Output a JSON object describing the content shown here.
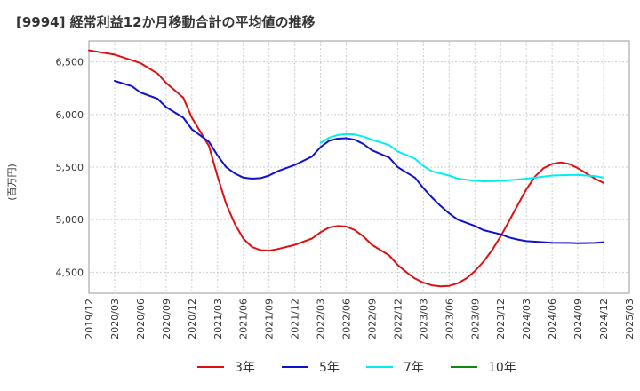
{
  "chart_data": {
    "type": "line",
    "title": "[9994]  経常利益12か月移動合計の平均値の推移",
    "ylabel": "(百万円)",
    "xlabel": "",
    "ylim": [
      4300,
      6700
    ],
    "yticks": [
      4500,
      5000,
      5500,
      6000,
      6500
    ],
    "ytick_labels": [
      "4,500",
      "5,000",
      "5,500",
      "6,000",
      "6,500"
    ],
    "xticks": [
      "2019/12",
      "2020/03",
      "2020/06",
      "2020/09",
      "2020/12",
      "2021/03",
      "2021/06",
      "2021/09",
      "2021/12",
      "2022/03",
      "2022/06",
      "2022/09",
      "2022/12",
      "2023/03",
      "2023/06",
      "2023/09",
      "2023/12",
      "2024/03",
      "2024/06",
      "2024/09",
      "2024/12",
      "2025/03"
    ],
    "grid": true,
    "legend_position": "bottom",
    "series": [
      {
        "name": "3年",
        "color": "#dd1111",
        "points": [
          [
            "2019/12",
            6610
          ],
          [
            "2020/03",
            6570
          ],
          [
            "2020/06",
            6490
          ],
          [
            "2020/08",
            6390
          ],
          [
            "2020/09",
            6300
          ],
          [
            "2020/11",
            6160
          ],
          [
            "2020/12",
            5970
          ],
          [
            "2021/02",
            5700
          ],
          [
            "2021/03",
            5410
          ],
          [
            "2021/04",
            5150
          ],
          [
            "2021/05",
            4960
          ],
          [
            "2021/06",
            4820
          ],
          [
            "2021/07",
            4740
          ],
          [
            "2021/08",
            4710
          ],
          [
            "2021/09",
            4705
          ],
          [
            "2021/10",
            4720
          ],
          [
            "2021/12",
            4760
          ],
          [
            "2022/02",
            4820
          ],
          [
            "2022/03",
            4880
          ],
          [
            "2022/04",
            4925
          ],
          [
            "2022/05",
            4940
          ],
          [
            "2022/06",
            4935
          ],
          [
            "2022/07",
            4900
          ],
          [
            "2022/08",
            4840
          ],
          [
            "2022/09",
            4760
          ],
          [
            "2022/11",
            4660
          ],
          [
            "2022/12",
            4570
          ],
          [
            "2023/01",
            4500
          ],
          [
            "2023/02",
            4440
          ],
          [
            "2023/03",
            4400
          ],
          [
            "2023/04",
            4375
          ],
          [
            "2023/05",
            4365
          ],
          [
            "2023/06",
            4370
          ],
          [
            "2023/07",
            4395
          ],
          [
            "2023/08",
            4440
          ],
          [
            "2023/09",
            4510
          ],
          [
            "2023/10",
            4600
          ],
          [
            "2023/11",
            4710
          ],
          [
            "2023/12",
            4840
          ],
          [
            "2024/01",
            4990
          ],
          [
            "2024/02",
            5140
          ],
          [
            "2024/03",
            5290
          ],
          [
            "2024/04",
            5410
          ],
          [
            "2024/05",
            5490
          ],
          [
            "2024/06",
            5530
          ],
          [
            "2024/07",
            5545
          ],
          [
            "2024/08",
            5530
          ],
          [
            "2024/09",
            5490
          ],
          [
            "2024/10",
            5440
          ],
          [
            "2024/11",
            5390
          ],
          [
            "2024/12",
            5350
          ]
        ]
      },
      {
        "name": "5年",
        "color": "#1111cc",
        "points": [
          [
            "2020/03",
            6320
          ],
          [
            "2020/05",
            6270
          ],
          [
            "2020/06",
            6210
          ],
          [
            "2020/08",
            6150
          ],
          [
            "2020/09",
            6070
          ],
          [
            "2020/11",
            5970
          ],
          [
            "2020/12",
            5860
          ],
          [
            "2021/02",
            5740
          ],
          [
            "2021/03",
            5610
          ],
          [
            "2021/04",
            5500
          ],
          [
            "2021/05",
            5440
          ],
          [
            "2021/06",
            5400
          ],
          [
            "2021/07",
            5390
          ],
          [
            "2021/08",
            5395
          ],
          [
            "2021/09",
            5420
          ],
          [
            "2021/10",
            5460
          ],
          [
            "2021/12",
            5520
          ],
          [
            "2022/02",
            5600
          ],
          [
            "2022/03",
            5690
          ],
          [
            "2022/04",
            5750
          ],
          [
            "2022/05",
            5770
          ],
          [
            "2022/06",
            5775
          ],
          [
            "2022/07",
            5760
          ],
          [
            "2022/08",
            5720
          ],
          [
            "2022/09",
            5660
          ],
          [
            "2022/11",
            5590
          ],
          [
            "2022/12",
            5500
          ],
          [
            "2023/02",
            5400
          ],
          [
            "2023/03",
            5300
          ],
          [
            "2023/04",
            5210
          ],
          [
            "2023/05",
            5130
          ],
          [
            "2023/06",
            5060
          ],
          [
            "2023/07",
            5000
          ],
          [
            "2023/09",
            4940
          ],
          [
            "2023/10",
            4900
          ],
          [
            "2023/12",
            4860
          ],
          [
            "2024/01",
            4830
          ],
          [
            "2024/02",
            4810
          ],
          [
            "2024/03",
            4795
          ],
          [
            "2024/05",
            4785
          ],
          [
            "2024/06",
            4780
          ],
          [
            "2024/08",
            4778
          ],
          [
            "2024/09",
            4775
          ],
          [
            "2024/11",
            4778
          ],
          [
            "2024/12",
            4785
          ]
        ]
      },
      {
        "name": "7年",
        "color": "#00eeee",
        "points": [
          [
            "2022/03",
            5730
          ],
          [
            "2022/04",
            5780
          ],
          [
            "2022/05",
            5805
          ],
          [
            "2022/06",
            5815
          ],
          [
            "2022/07",
            5810
          ],
          [
            "2022/08",
            5790
          ],
          [
            "2022/09",
            5760
          ],
          [
            "2022/11",
            5710
          ],
          [
            "2022/12",
            5650
          ],
          [
            "2023/02",
            5580
          ],
          [
            "2023/03",
            5510
          ],
          [
            "2023/04",
            5460
          ],
          [
            "2023/06",
            5420
          ],
          [
            "2023/07",
            5390
          ],
          [
            "2023/09",
            5370
          ],
          [
            "2023/10",
            5365
          ],
          [
            "2023/12",
            5368
          ],
          [
            "2024/01",
            5375
          ],
          [
            "2024/03",
            5390
          ],
          [
            "2024/05",
            5410
          ],
          [
            "2024/06",
            5420
          ],
          [
            "2024/08",
            5425
          ],
          [
            "2024/09",
            5425
          ],
          [
            "2024/11",
            5415
          ],
          [
            "2024/12",
            5400
          ]
        ]
      },
      {
        "name": "10年",
        "color": "#118811",
        "points": []
      }
    ]
  }
}
